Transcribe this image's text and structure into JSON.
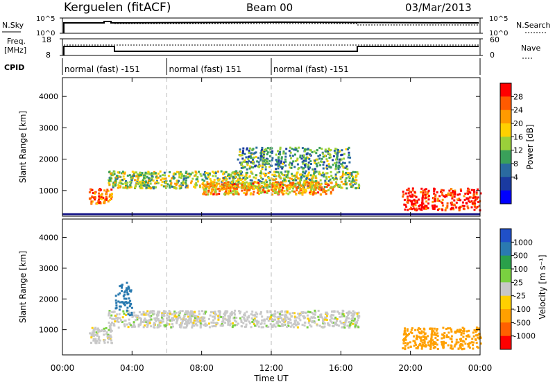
{
  "header": {
    "station": "Kerguelen (fitACF)",
    "beam": "Beam 00",
    "date": "03/Mar/2013"
  },
  "strips": {
    "nsky_label": "N.Sky",
    "nsky_ticks": [
      "10^5",
      "10^0"
    ],
    "nsearch_label": "N.Search",
    "nsearch_ticks": [
      "10^5",
      "10^0"
    ],
    "freq_label_1": "Freq.",
    "freq_label_2": "[MHz]",
    "freq_ticks": [
      "18",
      "8"
    ],
    "nave_label": "Nave",
    "nave_ticks": [
      "60",
      "0"
    ],
    "cpid_label": "CPID",
    "cpid_segments": [
      {
        "label": "normal (fast) -151",
        "start_hr": 0,
        "end_hr": 6
      },
      {
        "label": "normal (fast) 151",
        "start_hr": 6,
        "end_hr": 12
      },
      {
        "label": "normal (fast) -151",
        "start_hr": 12,
        "end_hr": 24
      }
    ]
  },
  "colorbars": {
    "power": {
      "label": "Power [dB]",
      "ticks": [
        "28",
        "24",
        "20",
        "16",
        "12",
        "8",
        "4"
      ],
      "colors": [
        "#ff0000",
        "#ff5a00",
        "#ff9a00",
        "#ffd000",
        "#9ad03a",
        "#3aa05a",
        "#2a6aa0",
        "#1a3aa0",
        "#0000ff"
      ]
    },
    "velocity": {
      "label": "Velocity [m s⁻¹]",
      "ticks": [
        "1000",
        "500",
        "100",
        "25",
        "-25",
        "-100",
        "-500",
        "-1000"
      ],
      "colors": [
        "#2050c8",
        "#2a7ab0",
        "#2aa04a",
        "#7ad040",
        "#c8c8c8",
        "#ffd000",
        "#ffa000",
        "#ff6000",
        "#ff0000"
      ]
    }
  },
  "chart_data": [
    {
      "type": "heatmap",
      "name": "power-panel",
      "x_unit": "hours UT",
      "xlim": [
        0,
        24
      ],
      "ylim": [
        180,
        4600
      ],
      "ylabel": "Slant Range [km]",
      "yticks": [
        1000,
        2000,
        3000,
        4000
      ],
      "xticks": [
        "00:00",
        "04:00",
        "08:00",
        "12:00",
        "16:00",
        "20:00",
        "00:00"
      ],
      "xtick_values": [
        0,
        4,
        8,
        12,
        16,
        20,
        24
      ],
      "dashed_lines_hr": [
        6,
        12
      ],
      "echo_regions": [
        {
          "t0": 1.5,
          "t1": 2.8,
          "r0": 600,
          "r1": 1100,
          "power": 24
        },
        {
          "t0": 2.6,
          "t1": 17.0,
          "r0": 1100,
          "r1": 1650,
          "power": 14
        },
        {
          "t0": 8.0,
          "t1": 15.5,
          "r0": 900,
          "r1": 1300,
          "power": 20
        },
        {
          "t0": 10.0,
          "t1": 16.5,
          "r0": 1700,
          "r1": 2400,
          "power": 10
        },
        {
          "t0": 19.5,
          "t1": 24.0,
          "r0": 400,
          "r1": 1100,
          "power": 28
        }
      ]
    },
    {
      "type": "heatmap",
      "name": "velocity-panel",
      "x_unit": "hours UT",
      "xlim": [
        0,
        24
      ],
      "ylim": [
        180,
        4600
      ],
      "ylabel": "Slant Range [km]",
      "xlabel": "Time UT",
      "yticks": [
        1000,
        2000,
        3000,
        4000
      ],
      "xticks": [
        "00:00",
        "04:00",
        "08:00",
        "12:00",
        "16:00",
        "20:00",
        "00:00"
      ],
      "xtick_values": [
        0,
        4,
        8,
        12,
        16,
        20,
        24
      ],
      "dashed_lines_hr": [
        6,
        12
      ],
      "echo_regions": [
        {
          "t0": 1.5,
          "t1": 2.8,
          "r0": 600,
          "r1": 1100,
          "velocity": 0
        },
        {
          "t0": 2.6,
          "t1": 17.0,
          "r0": 1100,
          "r1": 1650,
          "velocity": 0
        },
        {
          "t0": 3.0,
          "t1": 4.0,
          "r0": 1500,
          "r1": 2600,
          "velocity": 300
        },
        {
          "t0": 19.5,
          "t1": 24.0,
          "r0": 400,
          "r1": 1100,
          "velocity": -200
        }
      ]
    }
  ]
}
